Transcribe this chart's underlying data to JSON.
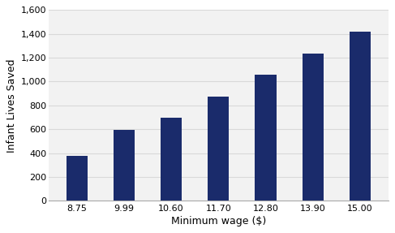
{
  "categories": [
    "8.75",
    "9.99",
    "10.60",
    "11.70",
    "12.80",
    "13.90",
    "15.00"
  ],
  "values": [
    380,
    595,
    700,
    875,
    1055,
    1235,
    1420
  ],
  "bar_color": "#1a2b6b",
  "xlabel": "Minimum wage ($)",
  "ylabel": "Infant Lives Saved",
  "ylim": [
    0,
    1600
  ],
  "yticks": [
    0,
    200,
    400,
    600,
    800,
    1000,
    1200,
    1400,
    1600
  ],
  "background_color": "#f2f2f2",
  "outer_background": "#ffffff",
  "grid_color": "#d9d9d9",
  "bar_width": 0.45,
  "tick_fontsize": 8,
  "label_fontsize": 9
}
